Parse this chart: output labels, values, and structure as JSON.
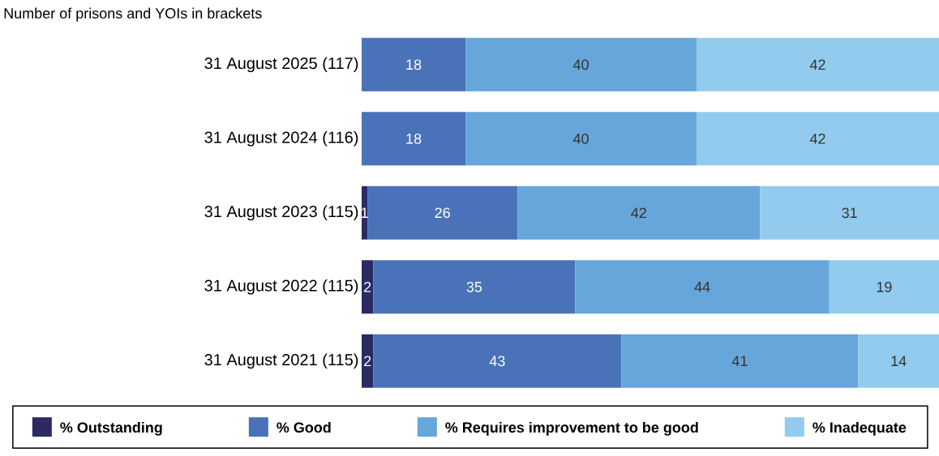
{
  "chart_data": {
    "type": "bar",
    "orientation": "horizontal",
    "stacked": true,
    "title": "Number of prisons and YOIs in brackets",
    "categories": [
      "31 August 2025 (117)",
      "31 August 2024 (116)",
      "31 August 2023 (115)",
      "31 August 2022 (115)",
      "31 August 2021 (115)"
    ],
    "series": [
      {
        "name": "% Outstanding",
        "color": "#2b2a63",
        "values": [
          null,
          null,
          1,
          2,
          2
        ]
      },
      {
        "name": "% Good",
        "color": "#4a72b8",
        "values": [
          18,
          18,
          26,
          35,
          43
        ]
      },
      {
        "name": "% Requires improvement to be good",
        "color": "#66a6da",
        "values": [
          40,
          40,
          42,
          44,
          41
        ]
      },
      {
        "name": "% Inadequate",
        "color": "#92cbee",
        "values": [
          42,
          42,
          31,
          19,
          14
        ]
      }
    ],
    "data_labels": true,
    "legend": "bottom",
    "tick_labels": "y"
  }
}
